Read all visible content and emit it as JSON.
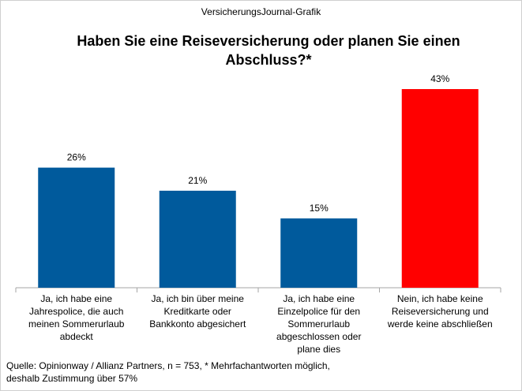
{
  "header": {
    "source": "VersicherungsJournal-Grafik"
  },
  "chart_data": {
    "type": "bar",
    "title": "Haben Sie eine Reiseversicherung oder planen Sie einen Abschluss?*",
    "categories": [
      "Ja, ich habe eine Jahrespolice, die auch meinen Sommerurlaub abdeckt",
      "Ja, ich bin über meine Kreditkarte oder Bankkonto abgesichert",
      "Ja, ich habe eine Einzelpolice für den Sommerurlaub abgeschlossen oder plane dies",
      "Nein, ich habe keine Reiseversicherung und werde keine abschließen"
    ],
    "values": [
      26,
      21,
      15,
      43
    ],
    "data_labels": [
      "26%",
      "21%",
      "15%",
      "43%"
    ],
    "bar_colors": [
      "#005a9c",
      "#005a9c",
      "#005a9c",
      "#ff0000"
    ],
    "ylim": [
      0,
      43
    ],
    "xlabel": "",
    "ylabel": ""
  },
  "footnote": {
    "line1": "Quelle: Opinionway / Allianz Partners, n = 753, * Mehrfachantworten möglich,",
    "line2": "deshalb Zustimmung über 57%"
  }
}
